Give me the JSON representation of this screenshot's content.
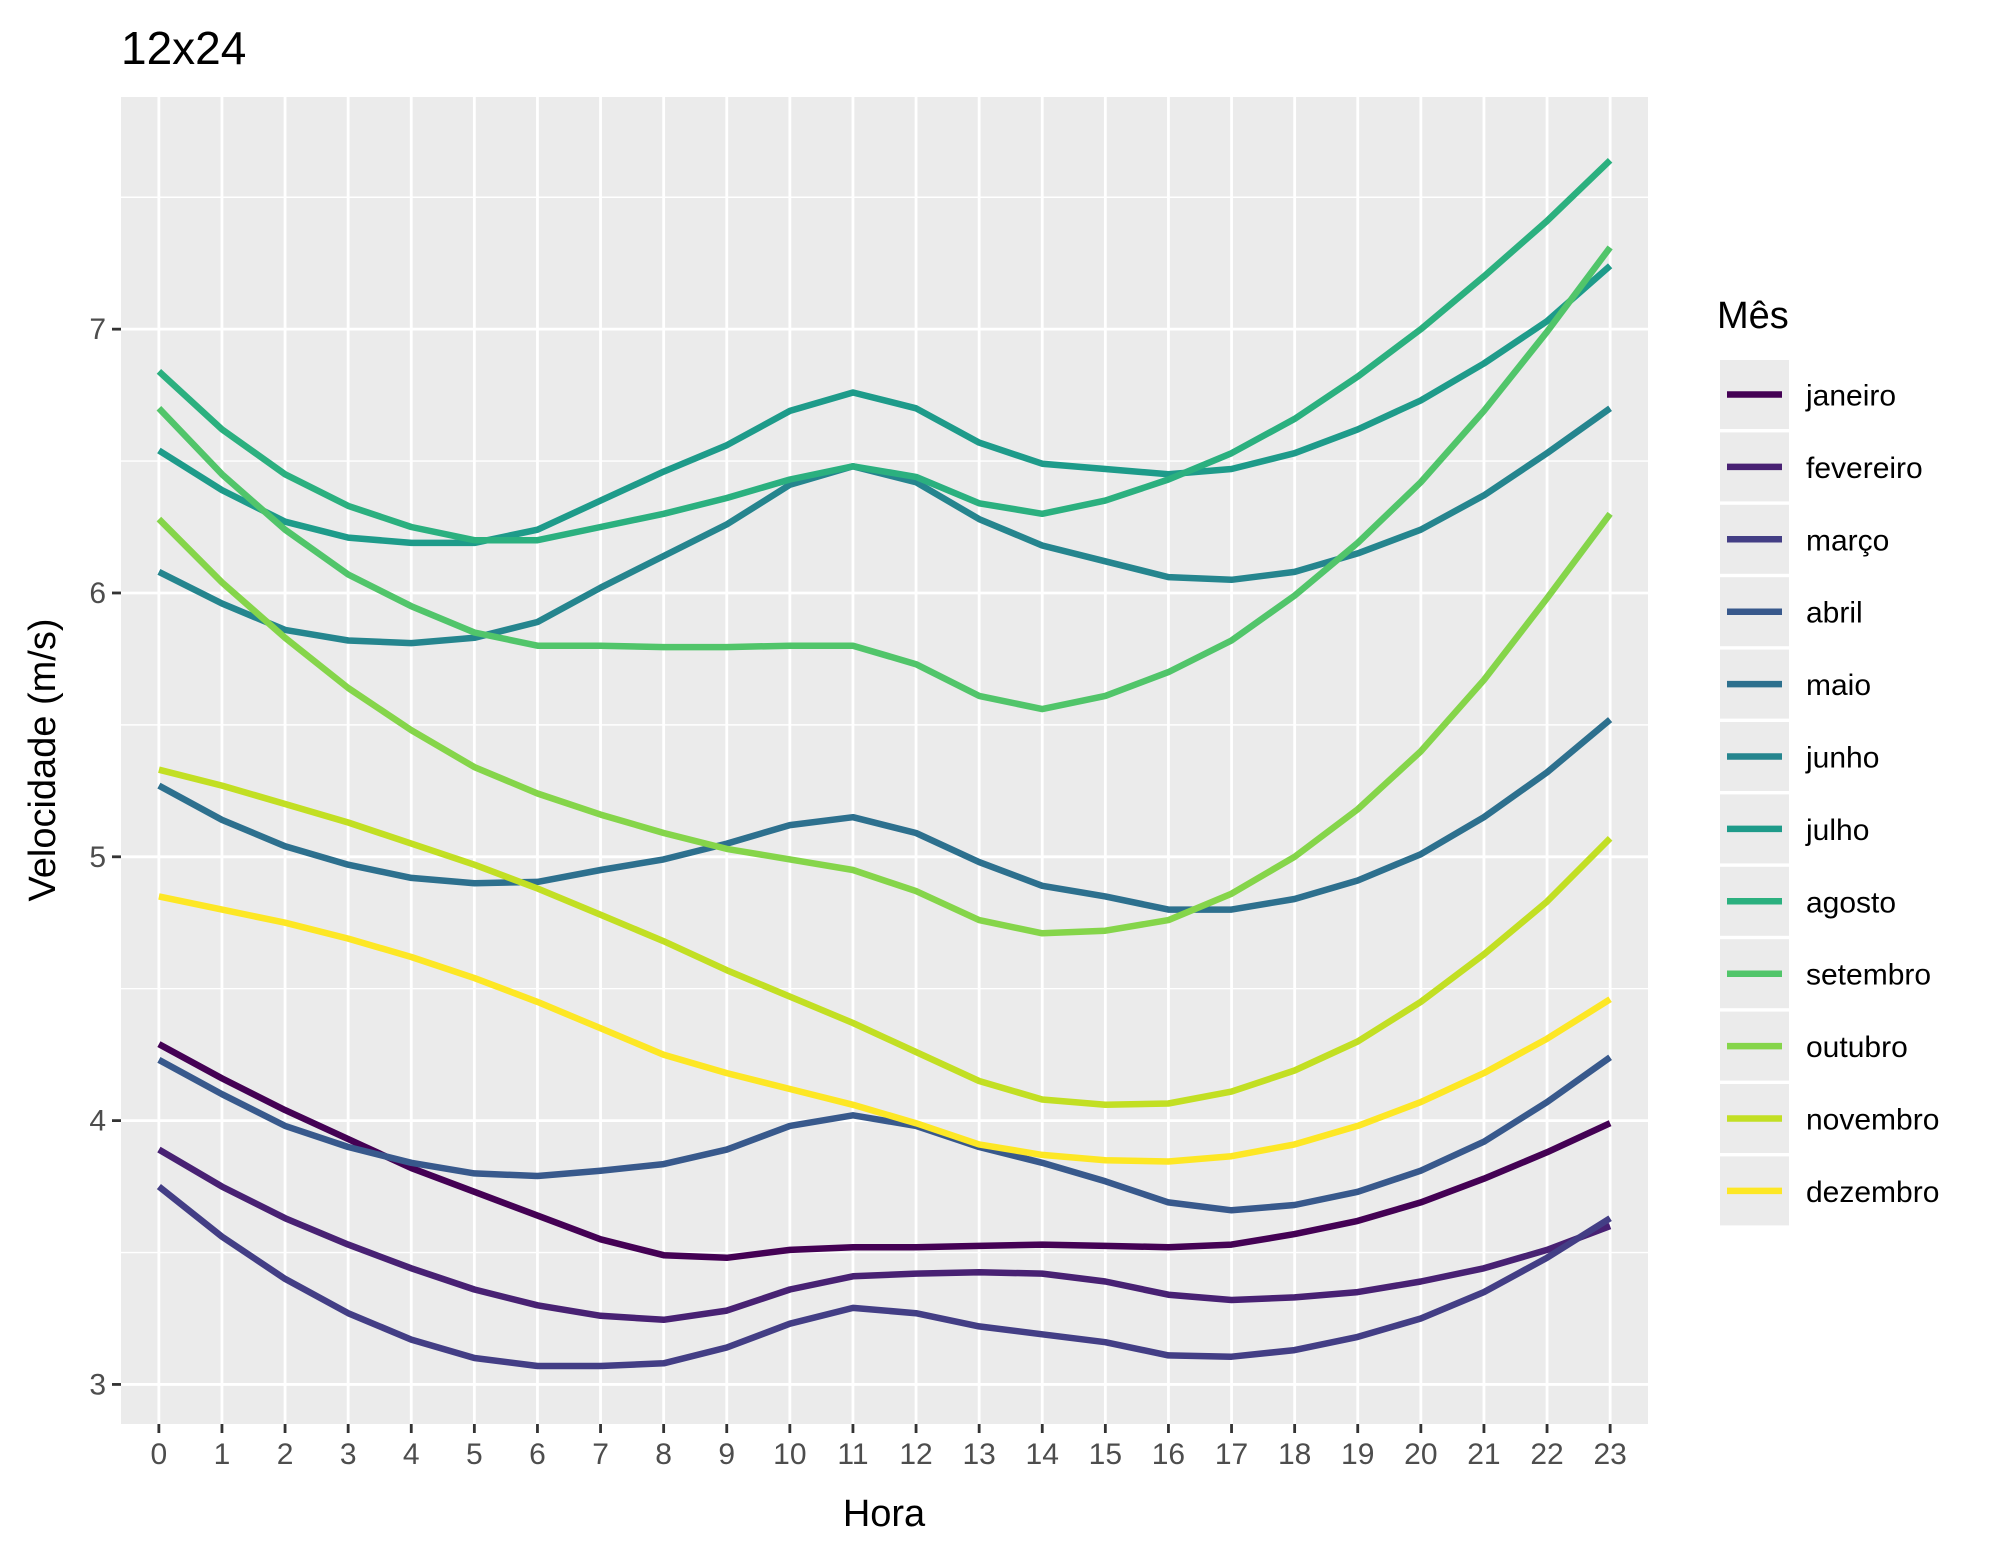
{
  "chart_data": {
    "type": "line",
    "title": "12x24",
    "xlabel": "Hora",
    "ylabel": "Velocidade (m/s)",
    "x": [
      0,
      1,
      2,
      3,
      4,
      5,
      6,
      7,
      8,
      9,
      10,
      11,
      12,
      13,
      14,
      15,
      16,
      17,
      18,
      19,
      20,
      21,
      22,
      23
    ],
    "x_tick_labels": [
      "0",
      "1",
      "2",
      "3",
      "4",
      "5",
      "6",
      "7",
      "8",
      "9",
      "10",
      "11",
      "12",
      "13",
      "14",
      "15",
      "16",
      "17",
      "18",
      "19",
      "20",
      "21",
      "22",
      "23"
    ],
    "xlim": [
      -0.6,
      23.6
    ],
    "ylim": [
      2.85,
      7.88
    ],
    "y_ticks": [
      3,
      4,
      5,
      6,
      7
    ],
    "y_tick_labels": [
      "3",
      "4",
      "5",
      "6",
      "7"
    ],
    "grid": true,
    "background": "#ebebeb",
    "legend": {
      "title": "Mês",
      "position": "right"
    },
    "series": [
      {
        "name": "janeiro",
        "color": "#440154",
        "values": [
          4.29,
          4.16,
          4.04,
          3.93,
          3.82,
          3.73,
          3.64,
          3.55,
          3.49,
          3.48,
          3.51,
          3.52,
          3.52,
          3.525,
          3.53,
          3.525,
          3.52,
          3.53,
          3.57,
          3.62,
          3.69,
          3.78,
          3.88,
          3.99
        ]
      },
      {
        "name": "fevereiro",
        "color": "#482173",
        "values": [
          3.89,
          3.75,
          3.63,
          3.53,
          3.44,
          3.36,
          3.3,
          3.26,
          3.245,
          3.28,
          3.36,
          3.41,
          3.42,
          3.425,
          3.42,
          3.39,
          3.34,
          3.32,
          3.33,
          3.35,
          3.39,
          3.44,
          3.51,
          3.6
        ]
      },
      {
        "name": "março",
        "color": "#433E85",
        "values": [
          3.75,
          3.56,
          3.4,
          3.27,
          3.17,
          3.1,
          3.07,
          3.07,
          3.08,
          3.14,
          3.23,
          3.29,
          3.27,
          3.22,
          3.19,
          3.16,
          3.11,
          3.105,
          3.13,
          3.18,
          3.25,
          3.35,
          3.48,
          3.63
        ]
      },
      {
        "name": "abril",
        "color": "#38598C",
        "values": [
          4.23,
          4.1,
          3.98,
          3.9,
          3.84,
          3.8,
          3.79,
          3.81,
          3.835,
          3.89,
          3.98,
          4.02,
          3.98,
          3.9,
          3.84,
          3.77,
          3.69,
          3.66,
          3.68,
          3.73,
          3.81,
          3.92,
          4.07,
          4.24
        ]
      },
      {
        "name": "maio",
        "color": "#2D708E",
        "values": [
          5.27,
          5.14,
          5.04,
          4.97,
          4.92,
          4.9,
          4.905,
          4.95,
          4.99,
          5.05,
          5.12,
          5.15,
          5.09,
          4.98,
          4.89,
          4.85,
          4.8,
          4.8,
          4.84,
          4.91,
          5.01,
          5.15,
          5.32,
          5.52
        ]
      },
      {
        "name": "junho",
        "color": "#25858E",
        "values": [
          6.08,
          5.96,
          5.86,
          5.82,
          5.81,
          5.83,
          5.89,
          6.02,
          6.14,
          6.26,
          6.41,
          6.48,
          6.42,
          6.28,
          6.18,
          6.12,
          6.06,
          6.05,
          6.08,
          6.15,
          6.24,
          6.37,
          6.53,
          6.7
        ]
      },
      {
        "name": "julho",
        "color": "#1E9B8A",
        "values": [
          6.54,
          6.39,
          6.27,
          6.21,
          6.19,
          6.19,
          6.24,
          6.35,
          6.46,
          6.56,
          6.69,
          6.76,
          6.7,
          6.57,
          6.49,
          6.47,
          6.45,
          6.47,
          6.53,
          6.62,
          6.73,
          6.87,
          7.03,
          7.24
        ]
      },
      {
        "name": "agosto",
        "color": "#2BB07F",
        "values": [
          6.84,
          6.62,
          6.45,
          6.33,
          6.25,
          6.2,
          6.2,
          6.25,
          6.3,
          6.36,
          6.43,
          6.48,
          6.44,
          6.34,
          6.3,
          6.35,
          6.43,
          6.53,
          6.66,
          6.82,
          7.0,
          7.2,
          7.41,
          7.64
        ]
      },
      {
        "name": "setembro",
        "color": "#51C56A",
        "values": [
          6.7,
          6.45,
          6.24,
          6.07,
          5.95,
          5.85,
          5.8,
          5.8,
          5.795,
          5.795,
          5.8,
          5.8,
          5.73,
          5.61,
          5.56,
          5.61,
          5.7,
          5.82,
          5.99,
          6.19,
          6.42,
          6.69,
          6.99,
          7.31
        ]
      },
      {
        "name": "outubro",
        "color": "#85D54A",
        "values": [
          6.28,
          6.04,
          5.83,
          5.64,
          5.48,
          5.34,
          5.24,
          5.16,
          5.09,
          5.03,
          4.99,
          4.95,
          4.87,
          4.76,
          4.71,
          4.72,
          4.76,
          4.86,
          5.0,
          5.18,
          5.4,
          5.67,
          5.98,
          6.3
        ]
      },
      {
        "name": "novembro",
        "color": "#C2DF23",
        "values": [
          5.33,
          5.27,
          5.2,
          5.13,
          5.05,
          4.97,
          4.88,
          4.78,
          4.68,
          4.57,
          4.47,
          4.37,
          4.26,
          4.15,
          4.08,
          4.06,
          4.065,
          4.11,
          4.19,
          4.3,
          4.45,
          4.63,
          4.83,
          5.07
        ]
      },
      {
        "name": "dezembro",
        "color": "#FDE725",
        "values": [
          4.85,
          4.8,
          4.75,
          4.69,
          4.62,
          4.54,
          4.45,
          4.35,
          4.25,
          4.18,
          4.12,
          4.06,
          3.99,
          3.91,
          3.87,
          3.85,
          3.845,
          3.865,
          3.91,
          3.98,
          4.07,
          4.18,
          4.31,
          4.46
        ]
      }
    ]
  }
}
